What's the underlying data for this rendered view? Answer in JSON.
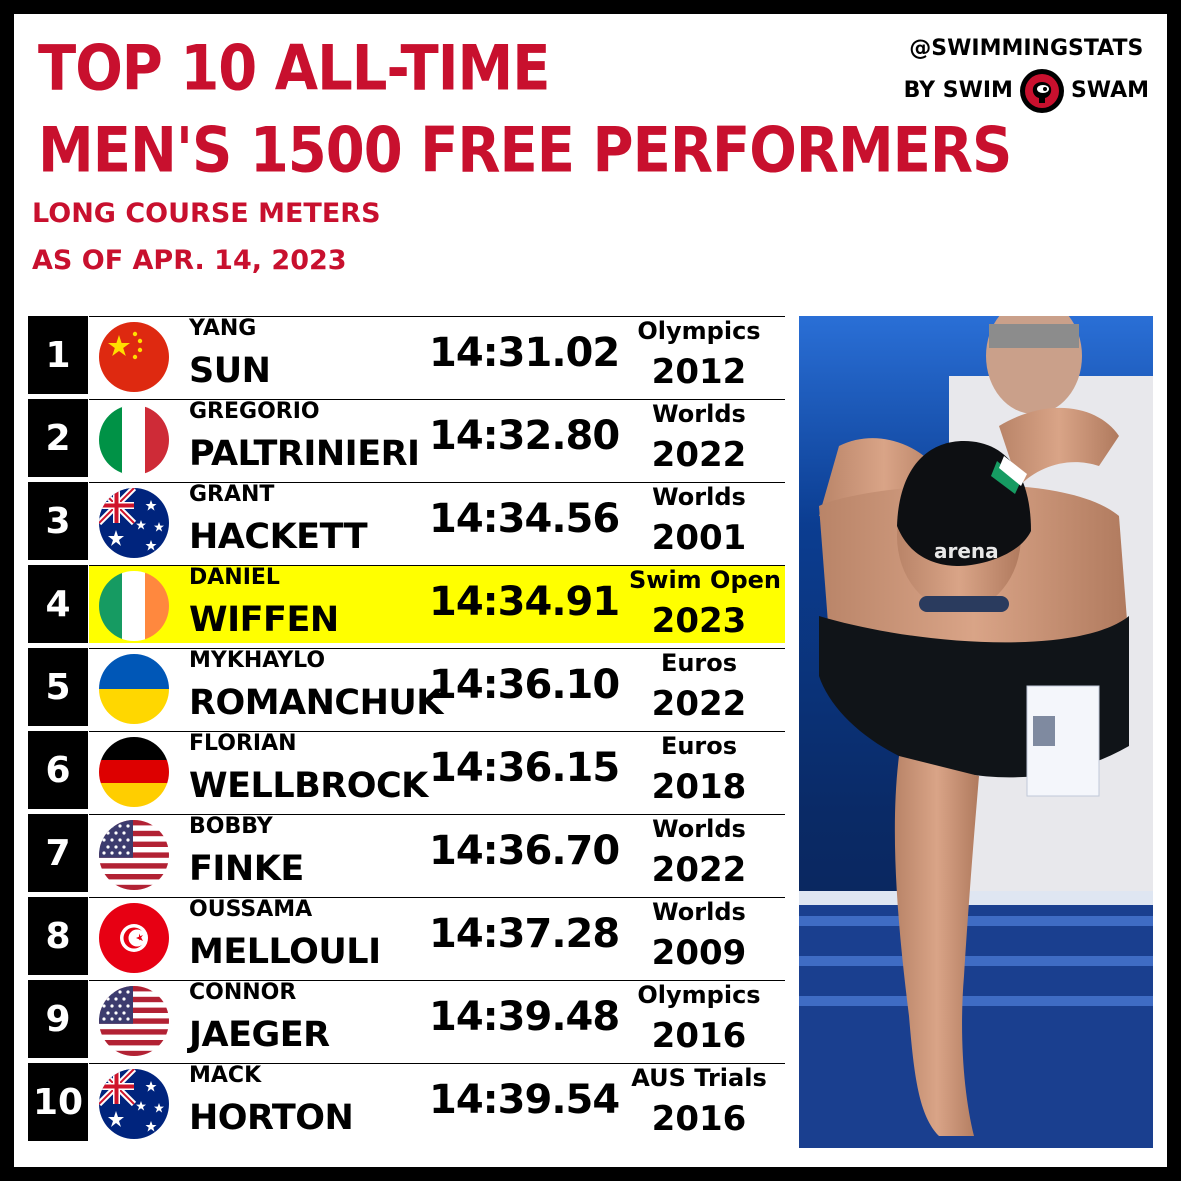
{
  "title_line1": "TOP 10 ALL-TIME",
  "title_line2": "MEN'S 1500 FREE PERFORMERS",
  "subtitle_line1": "LONG COURSE METERS",
  "subtitle_line2": "AS OF APR. 14, 2023",
  "brand": {
    "handle": "@SWIMMINGSTATS",
    "by": "BY SWIM",
    "swam": "SWAM"
  },
  "colors": {
    "title": "#c8102e",
    "highlight": "#ffff00",
    "rank_bg": "#000000",
    "frame": "#000000"
  },
  "rankings": [
    {
      "rank": "1",
      "first": "YANG",
      "last": "SUN",
      "time": "14:31.02",
      "meet": "Olympics",
      "year": "2012",
      "flag": "china"
    },
    {
      "rank": "2",
      "first": "GREGORIO",
      "last": "PALTRINIERI",
      "time": "14:32.80",
      "meet": "Worlds",
      "year": "2022",
      "flag": "italy"
    },
    {
      "rank": "3",
      "first": "GRANT",
      "last": "HACKETT",
      "time": "14:34.56",
      "meet": "Worlds",
      "year": "2001",
      "flag": "australia"
    },
    {
      "rank": "4",
      "first": "DANIEL",
      "last": "WIFFEN",
      "time": "14:34.91",
      "meet": "Swim Open",
      "year": "2023",
      "flag": "ireland",
      "highlight": true
    },
    {
      "rank": "5",
      "first": "MYKHAYLO",
      "last": "ROMANCHUK",
      "time": "14:36.10",
      "meet": "Euros",
      "year": "2022",
      "flag": "ukraine"
    },
    {
      "rank": "6",
      "first": "FLORIAN",
      "last": "WELLBROCK",
      "time": "14:36.15",
      "meet": "Euros",
      "year": "2018",
      "flag": "germany"
    },
    {
      "rank": "7",
      "first": "BOBBY",
      "last": "FINKE",
      "time": "14:36.70",
      "meet": "Worlds",
      "year": "2022",
      "flag": "usa"
    },
    {
      "rank": "8",
      "first": "OUSSAMA",
      "last": "MELLOULI",
      "time": "14:37.28",
      "meet": "Worlds",
      "year": "2009",
      "flag": "tunisia"
    },
    {
      "rank": "9",
      "first": "CONNOR",
      "last": "JAEGER",
      "time": "14:39.48",
      "meet": "Olympics",
      "year": "2016",
      "flag": "usa"
    },
    {
      "rank": "10",
      "first": "MACK",
      "last": "HORTON",
      "time": "14:39.54",
      "meet": "AUS Trials",
      "year": "2016",
      "flag": "australia"
    }
  ],
  "photo": {
    "cap_text": "arena"
  }
}
